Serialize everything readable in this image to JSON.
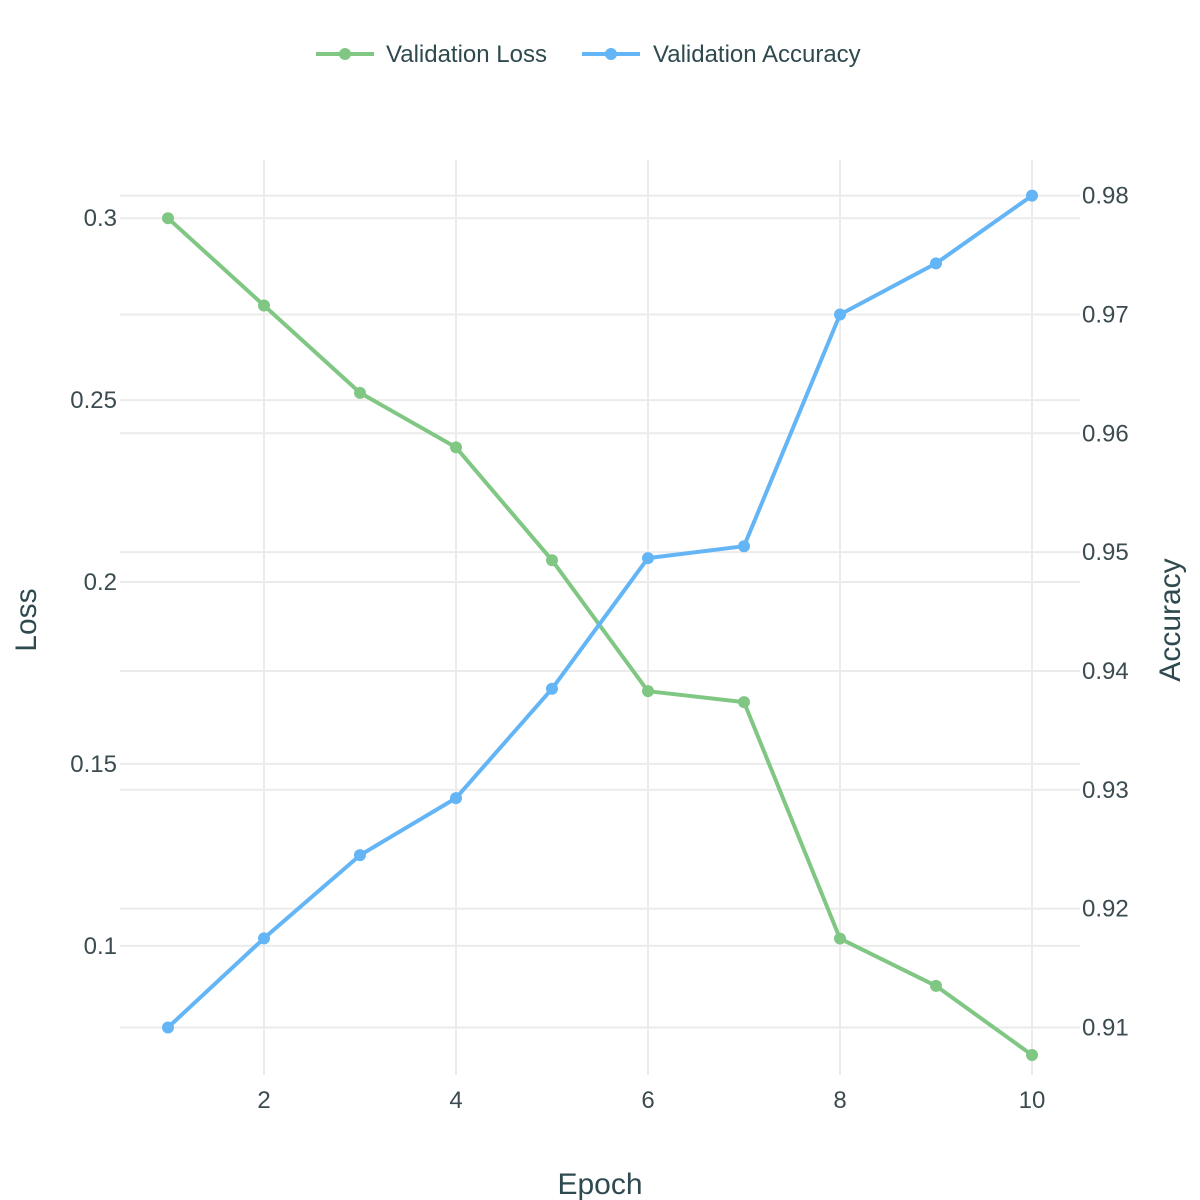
{
  "chart_data": {
    "type": "line",
    "x": [
      1,
      2,
      3,
      4,
      5,
      6,
      7,
      8,
      9,
      10
    ],
    "xlabel": "Epoch",
    "xlim": [
      0.5,
      10.5
    ],
    "xticks": [
      2,
      4,
      6,
      8,
      10
    ],
    "y_left": {
      "label": "Loss",
      "lim": [
        0.0645,
        0.316
      ],
      "ticks": [
        0.1,
        0.15,
        0.2,
        0.25,
        0.3
      ],
      "tick_labels": [
        "0.1",
        "0.15",
        "0.2",
        "0.25",
        "0.3"
      ]
    },
    "y_right": {
      "label": "Accuracy",
      "lim": [
        0.906,
        0.983
      ],
      "ticks": [
        0.91,
        0.92,
        0.93,
        0.94,
        0.95,
        0.96,
        0.97,
        0.98
      ],
      "tick_labels": [
        "0.91",
        "0.92",
        "0.93",
        "0.94",
        "0.95",
        "0.96",
        "0.97",
        "0.98"
      ]
    },
    "series": [
      {
        "name": "Validation Loss",
        "axis": "left",
        "color": "#81c784",
        "values": [
          0.3,
          0.276,
          0.252,
          0.237,
          0.206,
          0.17,
          0.167,
          0.102,
          0.089,
          0.07
        ]
      },
      {
        "name": "Validation Accuracy",
        "axis": "right",
        "color": "#64b5f6",
        "values": [
          0.91,
          0.9175,
          0.9245,
          0.9293,
          0.9385,
          0.9495,
          0.9505,
          0.97,
          0.9743,
          0.98
        ]
      }
    ],
    "grid": true,
    "legend_position": "top-center"
  }
}
